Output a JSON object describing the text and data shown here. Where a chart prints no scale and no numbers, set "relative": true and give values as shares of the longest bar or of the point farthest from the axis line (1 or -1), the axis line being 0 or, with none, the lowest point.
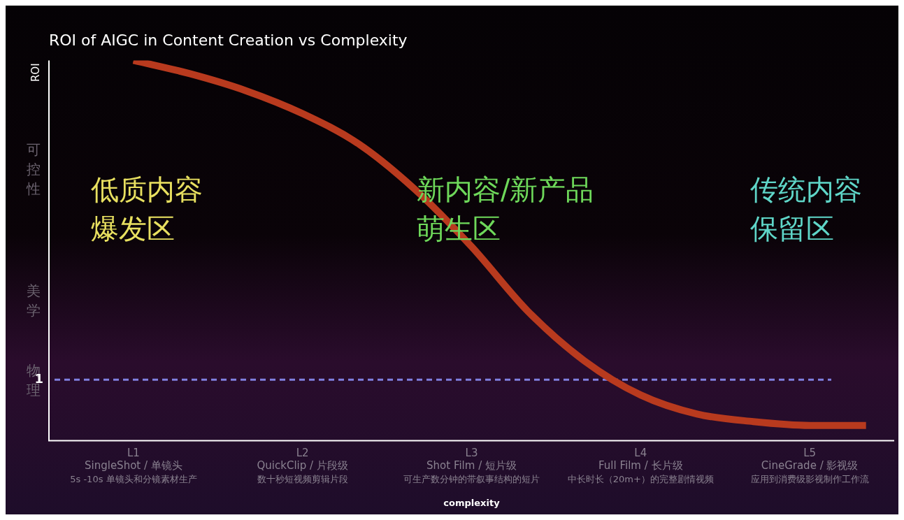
{
  "chart_data": {
    "type": "line",
    "title": "ROI of AIGC in Content Creation vs Complexity",
    "xlabel": "complexity",
    "ylabel": "ROI",
    "relative": true,
    "categories": [
      null,
      "L1\nSingleShot / 单镜头",
      null,
      null,
      "L2\nQuickClip / 片段级",
      null,
      null,
      "L3\nShot Film / 短片级",
      null,
      null,
      "L4\nFull Film / 长片级",
      null,
      null,
      "L5\nCineGrade / 影视级",
      null
    ],
    "series": [
      {
        "color": "#b83a1e",
        "values": [
          null,
          1,
          0.965,
          0.92,
          0.86,
          0.78,
          0.66,
          0.51,
          0.34,
          0.21,
          0.12,
          0.07,
          0.05,
          0.04,
          0.04
        ]
      }
    ],
    "ref_lines": [
      {
        "axis": "y",
        "value": 0.16,
        "label": null,
        "color": "#8080e0",
        "line_style": "dashed"
      }
    ],
    "annotations": [
      "低质内容",
      "爆发区",
      "新内容/新产品",
      "萌生区",
      "传统内容",
      "保留区",
      "可控性",
      "美学",
      "物理",
      "5s -10s 单镜头和分镜素材生产",
      "数十秒短视频剪辑片段",
      "可生产数分钟的带叙事结构的短片",
      "中长时长（20m+）的完整剧情视频",
      "应用到消费级影视制作工作流",
      "1"
    ],
    "legend": false
  }
}
